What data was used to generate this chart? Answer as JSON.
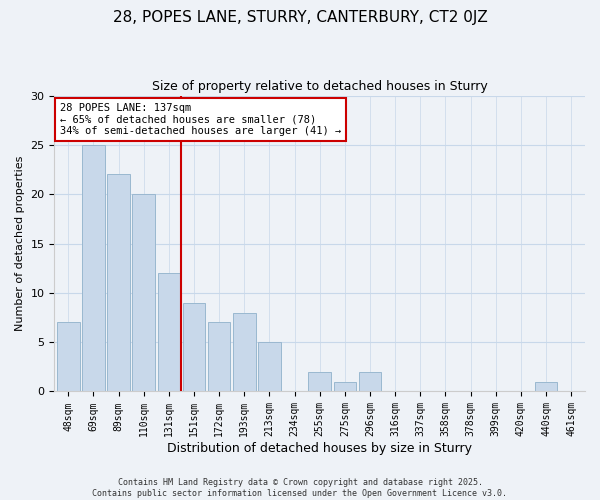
{
  "title": "28, POPES LANE, STURRY, CANTERBURY, CT2 0JZ",
  "subtitle": "Size of property relative to detached houses in Sturry",
  "xlabel": "Distribution of detached houses by size in Sturry",
  "ylabel": "Number of detached properties",
  "bar_labels": [
    "48sqm",
    "69sqm",
    "89sqm",
    "110sqm",
    "131sqm",
    "151sqm",
    "172sqm",
    "193sqm",
    "213sqm",
    "234sqm",
    "255sqm",
    "275sqm",
    "296sqm",
    "316sqm",
    "337sqm",
    "358sqm",
    "378sqm",
    "399sqm",
    "420sqm",
    "440sqm",
    "461sqm"
  ],
  "bar_values": [
    7,
    25,
    22,
    20,
    12,
    9,
    7,
    8,
    5,
    0,
    2,
    1,
    2,
    0,
    0,
    0,
    0,
    0,
    0,
    1,
    0
  ],
  "bar_color": "#c8d8ea",
  "bar_edgecolor": "#9ab8d0",
  "vline_x": 4.5,
  "vline_color": "#cc0000",
  "annotation_text": "28 POPES LANE: 137sqm\n← 65% of detached houses are smaller (78)\n34% of semi-detached houses are larger (41) →",
  "annotation_box_edgecolor": "#cc0000",
  "annotation_box_facecolor": "white",
  "ylim": [
    0,
    30
  ],
  "yticks": [
    0,
    5,
    10,
    15,
    20,
    25,
    30
  ],
  "grid_color": "#c8d8ea",
  "background_color": "#eef2f7",
  "footer_line1": "Contains HM Land Registry data © Crown copyright and database right 2025.",
  "footer_line2": "Contains public sector information licensed under the Open Government Licence v3.0."
}
